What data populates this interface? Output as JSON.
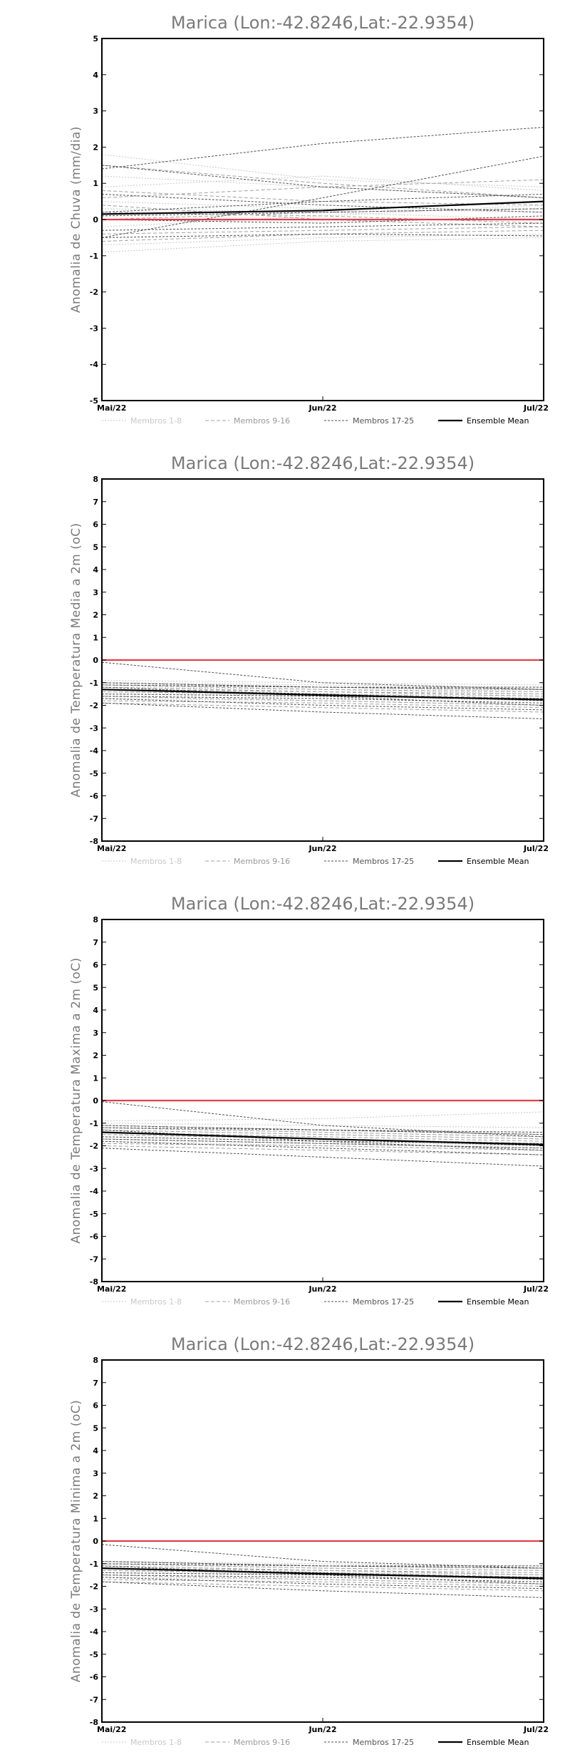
{
  "legend": [
    {
      "label": "Membros 1-8",
      "color": "#c8c8c8",
      "dash": "2,2",
      "width": 1
    },
    {
      "label": "Membros 9-16",
      "color": "#a0a0a0",
      "dash": "5,3",
      "width": 1
    },
    {
      "label": "Membros 17-25",
      "color": "#505050",
      "dash": "3,2",
      "width": 1
    },
    {
      "label": "Ensemble Mean",
      "color": "#000000",
      "dash": "",
      "width": 2.2
    }
  ],
  "zero_line_color": "#e0404a",
  "chart_data": [
    {
      "type": "line",
      "title": "Marica  (Lon:-42.8246,Lat:-22.9354)",
      "ylabel": "Anomalia de Chuva (mm/dia)",
      "categories": [
        "Mai/22",
        "Jun/22",
        "Jul/22"
      ],
      "ylim": [
        -5,
        5
      ],
      "yticks": [
        -5,
        -4,
        -3,
        -2,
        -1,
        0,
        1,
        2,
        3,
        4,
        5
      ],
      "members_1_8": [
        [
          1.8,
          1.1,
          0.9
        ],
        [
          1.2,
          0.9,
          0.6
        ],
        [
          0.5,
          0.3,
          0.2
        ],
        [
          -0.2,
          0.1,
          0.4
        ],
        [
          -0.7,
          -0.5,
          -0.4
        ],
        [
          0.3,
          0.2,
          0.0
        ],
        [
          -0.9,
          -0.6,
          -0.5
        ],
        [
          0.9,
          1.2,
          0.8
        ]
      ],
      "members_9_16": [
        [
          1.5,
          1.0,
          0.6
        ],
        [
          0.8,
          0.5,
          0.4
        ],
        [
          0.2,
          0.1,
          -0.1
        ],
        [
          -0.4,
          -0.3,
          -0.2
        ],
        [
          0.6,
          0.9,
          1.1
        ],
        [
          0.0,
          0.2,
          0.3
        ],
        [
          -0.6,
          -0.4,
          -0.3
        ],
        [
          0.4,
          0.0,
          -0.2
        ]
      ],
      "members_17_25": [
        [
          1.4,
          2.1,
          2.55
        ],
        [
          -0.5,
          0.6,
          1.75
        ],
        [
          1.5,
          0.9,
          0.6
        ],
        [
          0.1,
          0.2,
          0.3
        ],
        [
          -0.3,
          -0.2,
          -0.1
        ],
        [
          0.2,
          0.5,
          0.7
        ],
        [
          -0.5,
          -0.4,
          -0.45
        ],
        [
          0.7,
          0.4,
          0.2
        ],
        [
          0.0,
          -0.1,
          0.1
        ]
      ],
      "mean": [
        0.15,
        0.25,
        0.5
      ]
    },
    {
      "type": "line",
      "title": "Marica  (Lon:-42.8246,Lat:-22.9354)",
      "ylabel": "Anomalia de Temperatura Media a 2m (oC)",
      "categories": [
        "Mai/22",
        "Jun/22",
        "Jul/22"
      ],
      "ylim": [
        -8,
        8
      ],
      "yticks": [
        -8,
        -7,
        -6,
        -5,
        -4,
        -3,
        -2,
        -1,
        0,
        1,
        2,
        3,
        4,
        5,
        6,
        7,
        8
      ],
      "members_1_8": [
        [
          -1.0,
          -1.1,
          -1.2
        ],
        [
          -1.2,
          -1.3,
          -1.5
        ],
        [
          -1.5,
          -1.6,
          -1.8
        ],
        [
          -0.9,
          -1.0,
          -1.1
        ],
        [
          -1.4,
          -1.6,
          -1.7
        ],
        [
          -1.1,
          -1.2,
          -1.4
        ],
        [
          -1.7,
          -1.8,
          -2.0
        ],
        [
          -1.3,
          -1.5,
          -1.6
        ]
      ],
      "members_9_16": [
        [
          -1.1,
          -1.3,
          -1.4
        ],
        [
          -1.6,
          -1.8,
          -2.0
        ],
        [
          -1.2,
          -1.4,
          -1.5
        ],
        [
          -1.9,
          -2.1,
          -2.3
        ],
        [
          -1.0,
          -1.2,
          -1.3
        ],
        [
          -1.4,
          -1.5,
          -1.7
        ],
        [
          -1.8,
          -1.9,
          -2.1
        ],
        [
          -1.3,
          -1.4,
          -1.6
        ]
      ],
      "members_17_25": [
        [
          -0.1,
          -1.0,
          -1.3
        ],
        [
          -1.9,
          -2.3,
          -2.6
        ],
        [
          -1.3,
          -1.5,
          -1.8
        ],
        [
          -1.1,
          -1.2,
          -1.3
        ],
        [
          -1.6,
          -1.7,
          -1.9
        ],
        [
          -1.2,
          -1.6,
          -2.0
        ],
        [
          -1.5,
          -1.6,
          -1.7
        ],
        [
          -1.0,
          -1.2,
          -1.2
        ],
        [
          -1.7,
          -2.0,
          -2.2
        ]
      ],
      "mean": [
        -1.3,
        -1.55,
        -1.75
      ]
    },
    {
      "type": "line",
      "title": "Marica  (Lon:-42.8246,Lat:-22.9354)",
      "ylabel": "Anomalia de Temperatura Maxima a 2m (oC)",
      "categories": [
        "Mai/22",
        "Jun/22",
        "Jul/22"
      ],
      "ylim": [
        -8,
        8
      ],
      "yticks": [
        -8,
        -7,
        -6,
        -5,
        -4,
        -3,
        -2,
        -1,
        0,
        1,
        2,
        3,
        4,
        5,
        6,
        7,
        8
      ],
      "members_1_8": [
        [
          -1.1,
          -1.3,
          -1.4
        ],
        [
          -1.3,
          -1.5,
          -1.7
        ],
        [
          -1.6,
          -1.8,
          -2.0
        ],
        [
          -1.0,
          -1.1,
          -1.2
        ],
        [
          -1.5,
          -1.7,
          -1.9
        ],
        [
          -1.2,
          -1.4,
          -1.6
        ],
        [
          -1.8,
          -2.0,
          -2.2
        ],
        [
          -0.9,
          -0.8,
          -0.5
        ]
      ],
      "members_9_16": [
        [
          -1.2,
          -1.4,
          -1.6
        ],
        [
          -1.7,
          -1.9,
          -2.1
        ],
        [
          -1.3,
          -1.5,
          -1.7
        ],
        [
          -2.0,
          -2.2,
          -2.4
        ],
        [
          -1.1,
          -1.3,
          -1.5
        ],
        [
          -1.5,
          -1.7,
          -1.9
        ],
        [
          -1.9,
          -2.0,
          -2.2
        ],
        [
          -1.4,
          -1.6,
          -1.8
        ]
      ],
      "members_17_25": [
        [
          -0.05,
          -1.1,
          -1.6
        ],
        [
          -2.1,
          -2.5,
          -2.9
        ],
        [
          -1.4,
          -1.7,
          -2.0
        ],
        [
          -1.2,
          -1.3,
          -1.5
        ],
        [
          -1.7,
          -1.9,
          -2.1
        ],
        [
          -1.3,
          -1.8,
          -2.2
        ],
        [
          -1.6,
          -1.8,
          -1.9
        ],
        [
          -1.1,
          -1.3,
          -1.4
        ],
        [
          -1.8,
          -2.1,
          -2.4
        ]
      ],
      "mean": [
        -1.4,
        -1.7,
        -1.95
      ]
    },
    {
      "type": "line",
      "title": "Marica  (Lon:-42.8246,Lat:-22.9354)",
      "ylabel": "Anomalia de Temperatura Minima a 2m (oC)",
      "categories": [
        "Mai/22",
        "Jun/22",
        "Jul/22"
      ],
      "ylim": [
        -8,
        8
      ],
      "yticks": [
        -8,
        -7,
        -6,
        -5,
        -4,
        -3,
        -2,
        -1,
        0,
        1,
        2,
        3,
        4,
        5,
        6,
        7,
        8
      ],
      "members_1_8": [
        [
          -0.9,
          -1.1,
          -1.2
        ],
        [
          -1.1,
          -1.3,
          -1.5
        ],
        [
          -1.4,
          -1.5,
          -1.7
        ],
        [
          -0.9,
          -1.0,
          -1.1
        ],
        [
          -1.3,
          -1.5,
          -1.6
        ],
        [
          -1.0,
          -1.2,
          -1.3
        ],
        [
          -1.6,
          -1.7,
          -1.9
        ],
        [
          -1.2,
          -1.4,
          -1.5
        ]
      ],
      "members_9_16": [
        [
          -1.0,
          -1.2,
          -1.3
        ],
        [
          -1.5,
          -1.7,
          -1.9
        ],
        [
          -1.1,
          -1.3,
          -1.4
        ],
        [
          -1.8,
          -2.0,
          -2.2
        ],
        [
          -0.9,
          -1.1,
          -1.2
        ],
        [
          -1.3,
          -1.4,
          -1.6
        ],
        [
          -1.7,
          -1.8,
          -2.0
        ],
        [
          -1.2,
          -1.3,
          -1.5
        ]
      ],
      "members_17_25": [
        [
          -0.15,
          -0.9,
          -1.2
        ],
        [
          -1.8,
          -2.2,
          -2.5
        ],
        [
          -1.2,
          -1.4,
          -1.7
        ],
        [
          -1.0,
          -1.1,
          -1.2
        ],
        [
          -1.5,
          -1.6,
          -1.8
        ],
        [
          -1.1,
          -1.5,
          -1.9
        ],
        [
          -1.4,
          -1.5,
          -1.6
        ],
        [
          -0.9,
          -1.1,
          -1.1
        ],
        [
          -1.6,
          -1.9,
          -2.1
        ]
      ],
      "mean": [
        -1.2,
        -1.45,
        -1.65
      ]
    }
  ]
}
